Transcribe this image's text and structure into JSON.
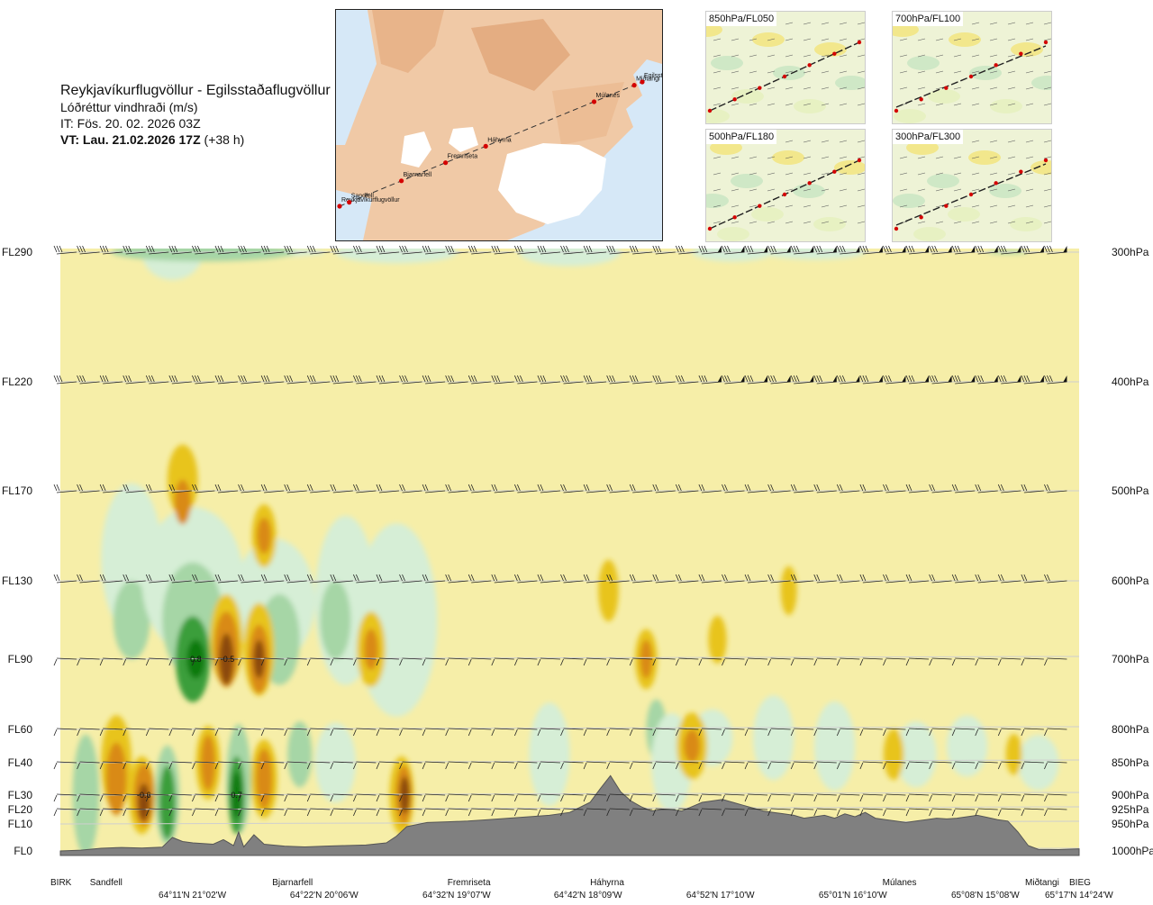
{
  "header": {
    "title": "Reykjavíkurflugvöllur - Egilsstaðaflugvöllur",
    "subtitle": "Lóðréttur vindhraði (m/s)",
    "it": "IT: Fös. 20. 02. 2026 03Z",
    "vt_bold": "VT: Lau. 21.02.2026 17Z",
    "vt_rest": " (+38 h)"
  },
  "map": {
    "places": [
      {
        "name": "Reykjavíkurflugvöllur",
        "lon": -21.94
      },
      {
        "name": "Sandfell",
        "lon": -21.7
      },
      {
        "name": "Bjarnarfell",
        "lon": -20.4
      },
      {
        "name": "Fremriseta",
        "lon": -19.3
      },
      {
        "name": "Háhyrna",
        "lon": -18.3
      },
      {
        "name": "Múlanes",
        "lon": -15.6
      },
      {
        "name": "Miðtangi",
        "lon": -14.6
      },
      {
        "name": "Egilsst",
        "lon": -14.4
      }
    ]
  },
  "minimaps": [
    {
      "label": "850hPa/FL050"
    },
    {
      "label": "700hPa/FL100"
    },
    {
      "label": "500hPa/FL180"
    },
    {
      "label": "300hPa/FL300"
    }
  ],
  "chart_data": {
    "type": "heatmap",
    "title": "Lóðréttur vindhraði (m/s)",
    "x_range": [
      0,
      100
    ],
    "flight_levels": [
      {
        "label": "FL290",
        "pressure": "300hPa"
      },
      {
        "label": "FL220",
        "pressure": "400hPa"
      },
      {
        "label": "FL170",
        "pressure": "500hPa"
      },
      {
        "label": "FL130",
        "pressure": "600hPa"
      },
      {
        "label": "FL90",
        "pressure": "700hPa"
      },
      {
        "label": "FL60",
        "pressure": "800hPa"
      },
      {
        "label": "FL40",
        "pressure": "850hPa"
      },
      {
        "label": "FL30",
        "pressure": "900hPa"
      },
      {
        "label": "FL20",
        "pressure": "925hPa"
      },
      {
        "label": "FL10",
        "pressure": "950hPa"
      },
      {
        "label": "FL0",
        "pressure": "1000hPa"
      }
    ],
    "x_locations": [
      {
        "name": "BIRK",
        "pos": 0
      },
      {
        "name": "Sandfell",
        "pos": 4.4
      },
      {
        "name": "Bjarnarfell",
        "pos": 22.3
      },
      {
        "name": "Fremriseta",
        "pos": 39.5
      },
      {
        "name": "Háhyrna",
        "pos": 53.5
      },
      {
        "name": "Múlanes",
        "pos": 82.2
      },
      {
        "name": "Miðtangi",
        "pos": 96.2
      },
      {
        "name": "BIEG",
        "pos": 100
      }
    ],
    "x_coords": [
      {
        "label": "64°11'N 21°02'W",
        "pos": 13.0
      },
      {
        "label": "64°22'N 20°06'W",
        "pos": 25.9
      },
      {
        "label": "64°32'N 19°07'W",
        "pos": 38.9
      },
      {
        "label": "64°42'N 18°09'W",
        "pos": 51.8
      },
      {
        "label": "64°52'N 17°10'W",
        "pos": 64.8
      },
      {
        "label": "65°01'N 16°10'W",
        "pos": 77.8
      },
      {
        "label": "65°08'N 15°08'W",
        "pos": 90.8
      },
      {
        "label": "65°17'N 14°24'W",
        "pos": 103.6
      }
    ],
    "terrain_ft": [
      [
        0,
        0
      ],
      [
        2,
        30
      ],
      [
        4,
        100
      ],
      [
        6,
        130
      ],
      [
        8,
        110
      ],
      [
        10,
        140
      ],
      [
        11,
        500
      ],
      [
        12,
        350
      ],
      [
        13,
        300
      ],
      [
        15,
        250
      ],
      [
        16,
        420
      ],
      [
        17,
        200
      ],
      [
        17.5,
        700
      ],
      [
        18,
        150
      ],
      [
        19,
        600
      ],
      [
        20,
        250
      ],
      [
        22,
        180
      ],
      [
        24,
        150
      ],
      [
        26,
        180
      ],
      [
        28,
        200
      ],
      [
        30,
        220
      ],
      [
        32,
        300
      ],
      [
        33,
        550
      ],
      [
        34,
        900
      ],
      [
        36,
        1100
      ],
      [
        38,
        1150
      ],
      [
        40,
        1200
      ],
      [
        42,
        1300
      ],
      [
        44,
        1400
      ],
      [
        46,
        1500
      ],
      [
        48,
        1600
      ],
      [
        50,
        1800
      ],
      [
        52,
        2500
      ],
      [
        53,
        3200
      ],
      [
        54,
        3600
      ],
      [
        55,
        3100
      ],
      [
        56,
        2600
      ],
      [
        57,
        2200
      ],
      [
        58,
        1900
      ],
      [
        59,
        2000
      ],
      [
        60,
        2000
      ],
      [
        61,
        1900
      ],
      [
        62,
        2200
      ],
      [
        63,
        2500
      ],
      [
        64,
        2600
      ],
      [
        65,
        2700
      ],
      [
        66,
        2500
      ],
      [
        67,
        2300
      ],
      [
        68,
        2100
      ],
      [
        69,
        1900
      ],
      [
        70,
        1800
      ],
      [
        71,
        1700
      ],
      [
        72,
        1600
      ],
      [
        73,
        1400
      ],
      [
        74,
        1500
      ],
      [
        75,
        1600
      ],
      [
        76,
        1400
      ],
      [
        77,
        1700
      ],
      [
        78,
        1500
      ],
      [
        79,
        1800
      ],
      [
        80,
        1400
      ],
      [
        81,
        1300
      ],
      [
        82,
        1200
      ],
      [
        83,
        1100
      ],
      [
        84,
        1200
      ],
      [
        85,
        1300
      ],
      [
        86,
        1400
      ],
      [
        87,
        1350
      ],
      [
        88,
        1400
      ],
      [
        89,
        1500
      ],
      [
        90,
        1600
      ],
      [
        91,
        1450
      ],
      [
        92,
        1300
      ],
      [
        93,
        1200
      ],
      [
        94,
        700
      ],
      [
        95,
        200
      ],
      [
        96,
        60
      ],
      [
        98,
        50
      ],
      [
        100,
        80
      ]
    ],
    "contour_labels": [
      {
        "text": "-0.6",
        "x": 8.2,
        "fl": 30
      },
      {
        "text": "0.8",
        "x": 13.3,
        "fl": 90
      },
      {
        "text": "-0.5",
        "x": 16.4,
        "fl": 90
      },
      {
        "text": "0.7",
        "x": 17.3,
        "fl": 30
      }
    ],
    "wind_rows_fl": [
      290,
      220,
      170,
      130,
      90,
      60,
      40,
      30,
      20
    ],
    "legend_colors": {
      "strong_down": "#8b4a10",
      "mod_down": "#d98a14",
      "weak_down": "#e8c41a",
      "near_zero": "#f6eea8",
      "weak_up": "#d6eed6",
      "mod_up": "#a6d6a6",
      "strong_up": "#3a9e3a",
      "very_strong_up": "#0a7a10",
      "terrain": "#808080"
    }
  }
}
